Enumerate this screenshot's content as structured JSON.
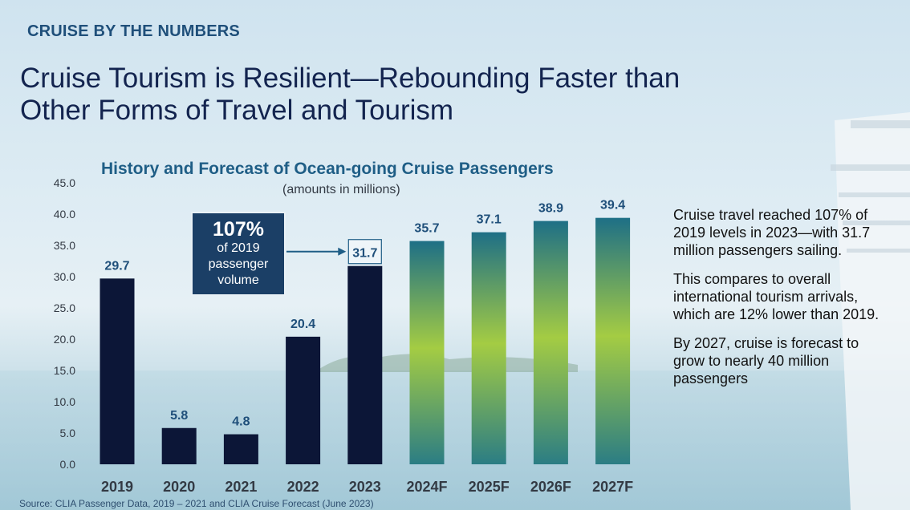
{
  "kicker": "CRUISE BY THE NUMBERS",
  "headline": {
    "line1": "Cruise Tourism is Resilient—Rebounding Faster than",
    "line2": "Other Forms of Travel and Tourism"
  },
  "callout": {
    "percent": "107%",
    "text": "of 2019 passenger volume"
  },
  "notes": [
    "Cruise travel reached 107% of 2019 levels in 2023—with 31.7 million passengers sailing.",
    "This compares to overall international tourism arrivals, which are 12% lower than 2019.",
    "By 2027, cruise is forecast to grow to nearly 40 million passengers"
  ],
  "source": "Source: CLIA Passenger Data, 2019 – 2021 and CLIA Cruise Forecast  (June 2023)",
  "colors": {
    "actual_bar": "#0c1637",
    "forecast_top": "#1e6f86",
    "forecast_mid": "#a4cc43",
    "forecast_bottom": "#2b7d84",
    "value_label": "#1f4f7a",
    "axis_label": "#333a44"
  },
  "chart_data": {
    "type": "bar",
    "title": "History and Forecast of Ocean-going Cruise Passengers",
    "subtitle": "(amounts in millions)",
    "categories": [
      "2019",
      "2020",
      "2021",
      "2022",
      "2023",
      "2024F",
      "2025F",
      "2026F",
      "2027F"
    ],
    "values": [
      29.7,
      5.8,
      4.8,
      20.4,
      31.7,
      35.7,
      37.1,
      38.9,
      39.4
    ],
    "value_labels": [
      "29.7",
      "5.8",
      "4.8",
      "20.4",
      "31.7",
      "35.7",
      "37.1",
      "38.9",
      "39.4"
    ],
    "forecast": [
      false,
      false,
      false,
      false,
      false,
      true,
      true,
      true,
      true
    ],
    "highlighted_label_index": 4,
    "ylim": [
      0,
      45
    ],
    "yticks": [
      "0.0",
      "5.0",
      "10.0",
      "15.0",
      "20.0",
      "25.0",
      "30.0",
      "35.0",
      "40.0",
      "45.0"
    ],
    "grid": false,
    "legend": "none"
  }
}
